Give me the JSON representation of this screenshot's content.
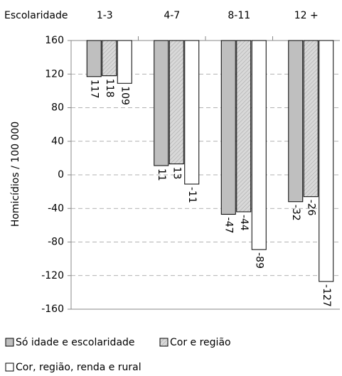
{
  "chart_data": {
    "type": "bar",
    "x_label": "Escolaridade",
    "y_label": "Homicídios / 100 000",
    "categories": [
      "1-3",
      "4-7",
      "8-11",
      "12 +"
    ],
    "series": [
      {
        "name": "Só idade e escolaridade",
        "color": "#bfbfbf",
        "values": [
          117,
          11,
          -47,
          -32
        ]
      },
      {
        "name": "Cor e região",
        "color": "#d9d9d9",
        "values": [
          118,
          13,
          -44,
          -26
        ]
      },
      {
        "name": "Cor, região, renda e rural",
        "color": "#ffffff",
        "values": [
          109,
          -11,
          -89,
          -127
        ]
      }
    ],
    "ylim": [
      -160,
      160
    ],
    "yticks": [
      -160,
      -120,
      -80,
      -40,
      0,
      40,
      80,
      120,
      160
    ],
    "grid": true,
    "legend": "bottom"
  }
}
